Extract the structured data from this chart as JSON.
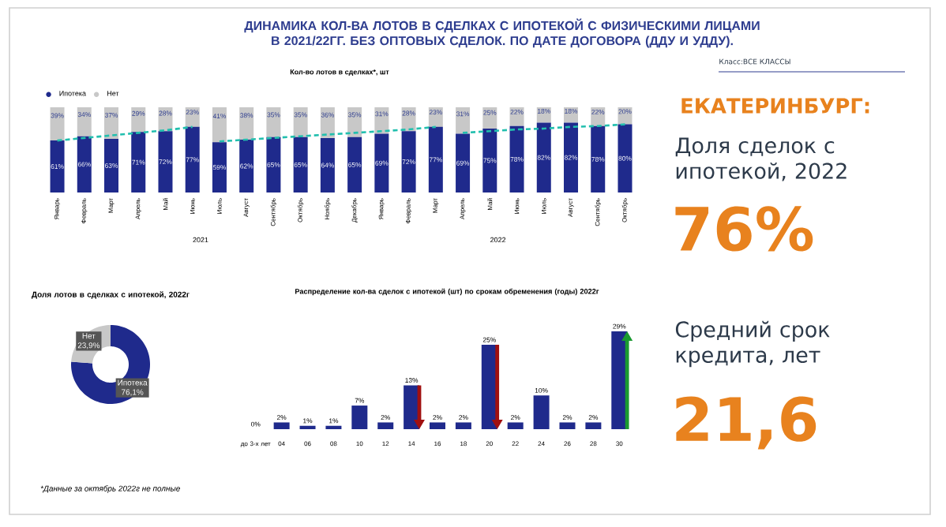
{
  "chart_data": [
    {
      "type": "bar",
      "title": "ДИНАМИКА КОЛ-ВА ЛОТОВ В СДЕЛКАХ С ИПОТЕКОЙ С ФИЗИЧЕСКИМИ ЛИЦАМИ В 2021/22ГГ. БЕЗ ОПТОВЫХ СДЕЛОК. ПО ДАТЕ ДОГОВОРА (ДДУ И УДДУ).",
      "subtitle": "Кол-во лотов в сделках*, шт",
      "categories": [
        "Январь",
        "Февраль",
        "Март",
        "Апрель",
        "Май",
        "Июнь",
        "Июль",
        "Август",
        "Сентябрь",
        "Октябрь",
        "Ноябрь",
        "Декабрь",
        "Январь",
        "Февраль",
        "Март",
        "Апрель",
        "Май",
        "Июнь",
        "Июль",
        "Август",
        "Сентябрь",
        "Октябрь"
      ],
      "stacked": true,
      "legend": "top left",
      "series": [
        {
          "name": "Ипотека",
          "color": "#1f2a8c",
          "values": [
            61,
            66,
            63,
            71,
            72,
            77,
            59,
            62,
            65,
            65,
            64,
            65,
            69,
            72,
            77,
            69,
            75,
            78,
            82,
            82,
            78,
            80
          ],
          "value_labels": [
            "61%",
            "66%",
            "63%",
            "71%",
            "72%",
            "77%",
            "59%",
            "62%",
            "65%",
            "65%",
            "64%",
            "65%",
            "69%",
            "72%",
            "77%",
            "69%",
            "75%",
            "78%",
            "82%",
            "82%",
            "78%",
            "80%"
          ]
        },
        {
          "name": "Нет",
          "color": "#c8c8c8",
          "values": [
            39,
            34,
            37,
            29,
            28,
            23,
            41,
            38,
            35,
            35,
            36,
            35,
            31,
            28,
            23,
            31,
            25,
            22,
            18,
            18,
            22,
            20
          ],
          "value_labels": [
            "39%",
            "34%",
            "37%",
            "29%",
            "28%",
            "23%",
            "41%",
            "38%",
            "35%",
            "35%",
            "36%",
            "35%",
            "31%",
            "28%",
            "23%",
            "31%",
            "25%",
            "22%",
            "18%",
            "18%",
            "22%",
            "20%"
          ]
        },
        {
          "type": "line",
          "color": "#22bfae",
          "line_style": "dashed",
          "values": [
            61,
            64,
            67,
            70,
            73,
            77,
            null,
            null,
            null,
            null,
            null,
            null,
            null,
            null,
            null,
            null,
            null,
            null,
            null,
            null,
            null,
            null
          ]
        },
        {
          "type": "line",
          "color": "#22bfae",
          "line_style": "dashed",
          "values": [
            null,
            null,
            null,
            null,
            null,
            null,
            60,
            62,
            64,
            66,
            68,
            70,
            72,
            74,
            77,
            null,
            null,
            null,
            null,
            null,
            null,
            null
          ]
        },
        {
          "type": "line",
          "color": "#22bfae",
          "line_style": "dashed",
          "values": [
            null,
            null,
            null,
            null,
            null,
            null,
            null,
            null,
            null,
            null,
            null,
            null,
            null,
            null,
            null,
            70,
            72,
            74,
            75,
            77,
            78,
            80
          ]
        }
      ],
      "annotations": [
        "2021",
        "2022",
        "*Данные за октябрь 2022г не полные"
      ]
    },
    {
      "type": "donut",
      "title": "Доля лотов в сделках с ипотекой, 2022г",
      "categories": [
        "Ипотека",
        "Нет"
      ],
      "values": [
        76.1,
        23.9
      ],
      "colors": [
        "#1f2a8c",
        "#c8c8c8"
      ],
      "value_labels": [
        "76,1%",
        "23,9%"
      ]
    },
    {
      "type": "bar",
      "title": "Распределение кол-ва сделок с ипотекой (шт) по срокам обременения (годы) 2022г",
      "categories": [
        "до 3-х лет",
        "04",
        "06",
        "08",
        "10",
        "12",
        "14",
        "16",
        "18",
        "20",
        "22",
        "24",
        "26",
        "28",
        "30"
      ],
      "values": [
        0,
        2,
        1,
        1,
        7,
        2,
        13,
        2,
        2,
        25,
        2,
        10,
        2,
        2,
        29
      ],
      "color": "#1f2a8c",
      "value_labels": [
        "0%",
        "2%",
        "1%",
        "1%",
        "7%",
        "2%",
        "13%",
        "2%",
        "2%",
        "25%",
        "2%",
        "10%",
        "2%",
        "2%",
        "29%"
      ]
    },
    {
      "type": "other",
      "title": "ЕКАТЕРИНБУРГ:",
      "annotations": [
        "Класс:ВСЕ КЛАССЫ",
        "Доля сделок с ипотекой, 2022",
        "76%",
        "Средний срок кредита, лет",
        "21,6"
      ]
    }
  ]
}
